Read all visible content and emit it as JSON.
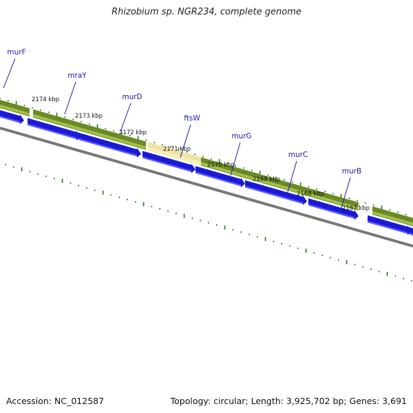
{
  "title": "Rhizobium sp. NGR234, complete genome",
  "footer": {
    "accession": "Accession: NC_012587",
    "summary": "Topology: circular; Length: 3,925,702 bp; Genes: 3,691"
  },
  "genome_map": {
    "scale_labels": [
      "2174 kbp",
      "2173 kbp",
      "2172 kbp",
      "2171 kbp",
      "2170 kbp",
      "2169 kbp",
      "2168 kbp",
      "2167 kbp"
    ],
    "genes": [
      {
        "name": "murF",
        "highlighted": false
      },
      {
        "name": "mraY",
        "highlighted": false
      },
      {
        "name": "murD",
        "highlighted": false
      },
      {
        "name": "ftsW",
        "highlighted": true
      },
      {
        "name": "murG",
        "highlighted": false
      },
      {
        "name": "murC",
        "highlighted": false
      },
      {
        "name": "murB",
        "highlighted": false
      }
    ],
    "colors": {
      "gene_bar": "#6b8a23",
      "gene_bar_light": "#a4be4c",
      "highlight_bar": "#f0e3a0",
      "cds_arrow": "#1a1ad6",
      "cds_arrow_light": "#5a5aff",
      "backbone": "#777777",
      "tick": "#1f7a1f",
      "gene_label": "#1a1aa6"
    }
  }
}
